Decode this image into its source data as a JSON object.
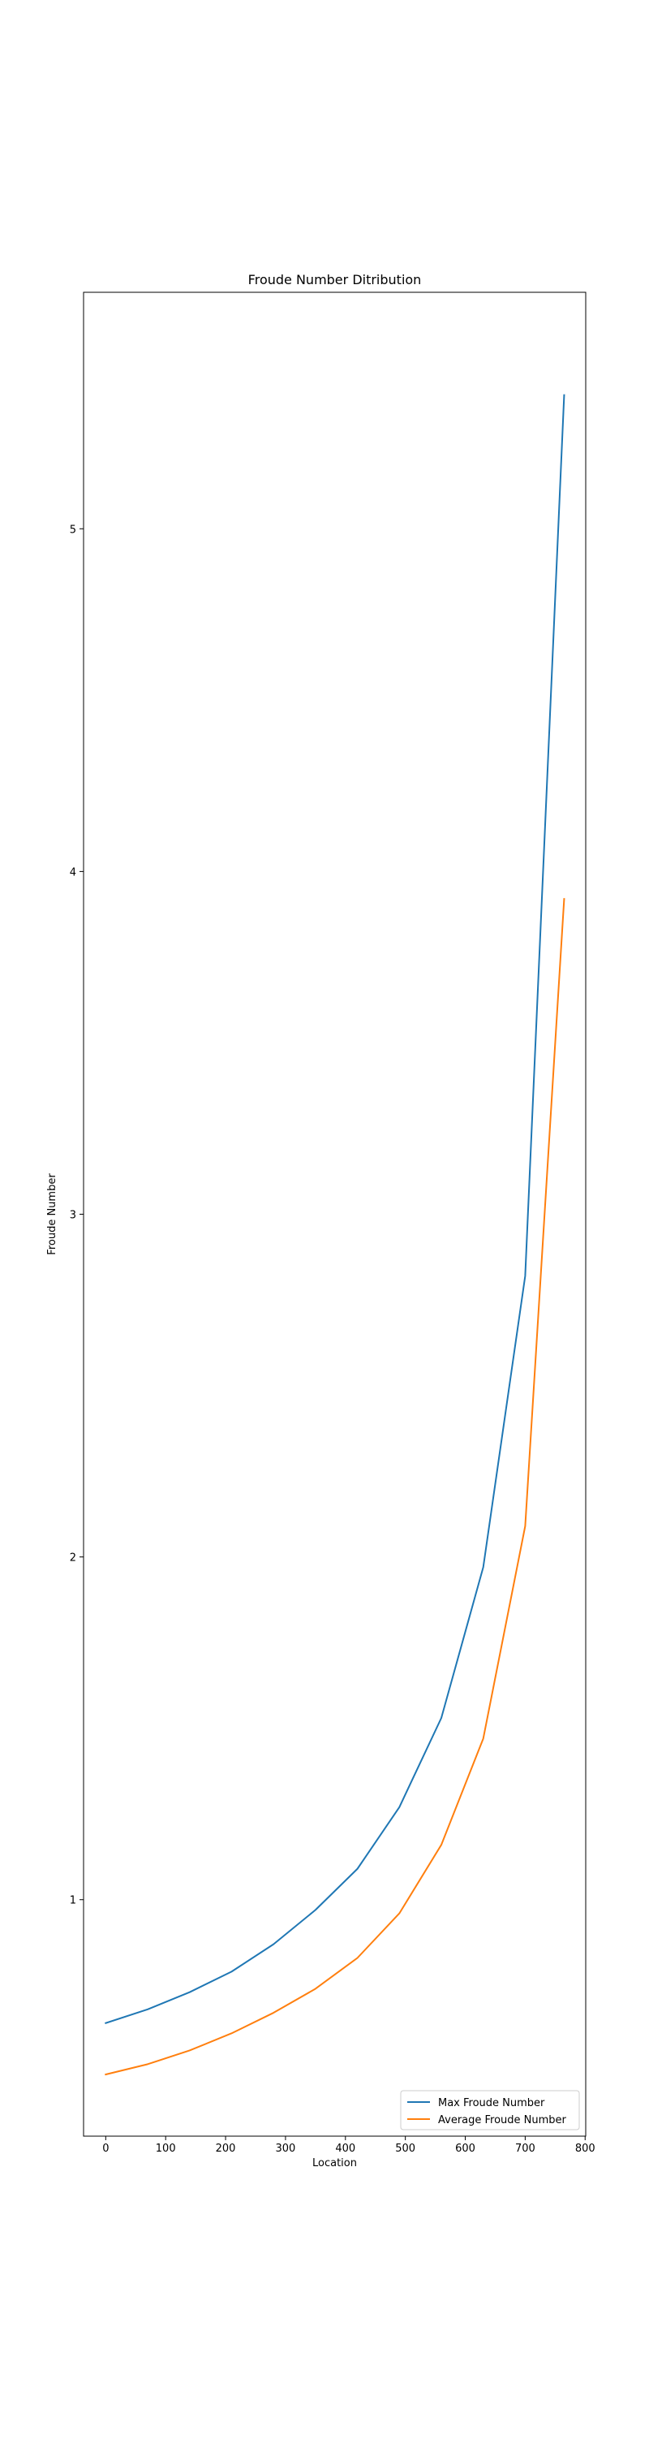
{
  "chart_data": {
    "type": "line",
    "title": "Froude Number Ditribution",
    "xlabel": "Location",
    "ylabel": "Froude Number",
    "xlim": [
      -37,
      801
    ],
    "ylim": [
      0.31,
      5.69
    ],
    "xticks": [
      0,
      100,
      200,
      300,
      400,
      500,
      600,
      700,
      800
    ],
    "yticks": [
      1,
      2,
      3,
      4,
      5
    ],
    "grid": false,
    "legend_position": "lower-right",
    "x": [
      0,
      70,
      140,
      210,
      280,
      350,
      420,
      490,
      560,
      630,
      700,
      765
    ],
    "series": [
      {
        "name": "Max Froude Number",
        "color": "#1f77b4",
        "values": [
          0.64,
          0.68,
          0.73,
          0.79,
          0.87,
          0.97,
          1.09,
          1.27,
          1.53,
          1.97,
          2.82,
          5.39
        ]
      },
      {
        "name": "Average Froude Number",
        "color": "#ff7f0e",
        "values": [
          0.49,
          0.52,
          0.56,
          0.61,
          0.67,
          0.74,
          0.83,
          0.96,
          1.16,
          1.47,
          2.09,
          3.92
        ]
      }
    ]
  }
}
